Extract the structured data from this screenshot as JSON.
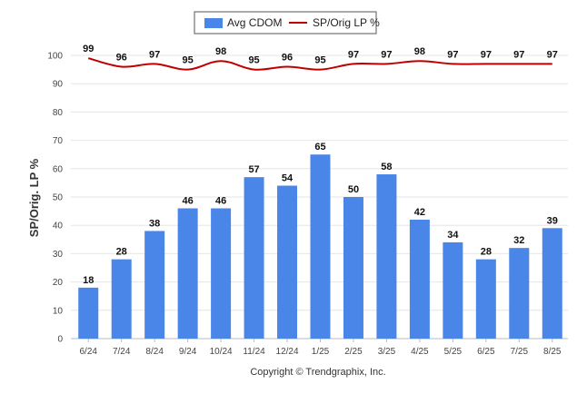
{
  "chart_data": {
    "type": "bar",
    "categories": [
      "6/24",
      "7/24",
      "8/24",
      "9/24",
      "10/24",
      "11/24",
      "12/24",
      "1/25",
      "2/25",
      "3/25",
      "4/25",
      "5/25",
      "6/25",
      "7/25",
      "8/25"
    ],
    "series": [
      {
        "name": "Avg CDOM",
        "type": "bar",
        "color": "#4a86e8",
        "values": [
          18,
          28,
          38,
          46,
          46,
          57,
          54,
          65,
          50,
          58,
          42,
          34,
          28,
          32,
          39
        ]
      },
      {
        "name": "SP/Orig LP %",
        "type": "line",
        "color": "#c00000",
        "values": [
          99,
          96,
          97,
          95,
          98,
          95,
          96,
          95,
          97,
          97,
          98,
          97,
          97,
          97,
          97
        ]
      }
    ],
    "ylabel": "SP/Orig. LP %",
    "xlabel": "",
    "ylim": [
      0,
      100
    ],
    "yticks": [
      0,
      10,
      20,
      30,
      40,
      50,
      60,
      70,
      80,
      90,
      100
    ],
    "grid": true,
    "legend_position": "top-center"
  },
  "credit": "Copyright © Trendgraphix, Inc."
}
